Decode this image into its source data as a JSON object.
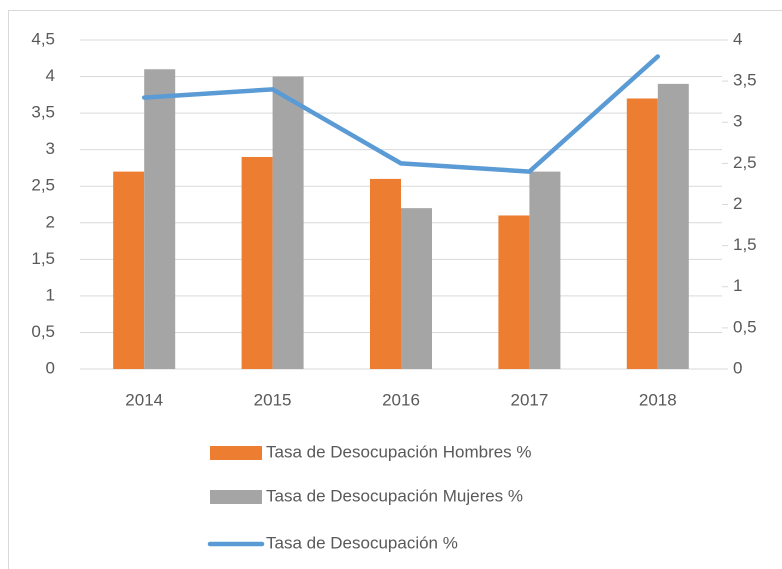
{
  "chart_data": {
    "type": "bar-line",
    "categories": [
      "2014",
      "2015",
      "2016",
      "2017",
      "2018"
    ],
    "series": [
      {
        "name": "Tasa de Desocupación Hombres %",
        "color": "#ed7d31",
        "type": "bar",
        "values": [
          2.7,
          2.9,
          2.6,
          2.1,
          3.7
        ]
      },
      {
        "name": "Tasa de Desocupación Mujeres %",
        "color": "#a5a5a5",
        "type": "bar",
        "values": [
          4.1,
          4.0,
          2.2,
          2.7,
          3.9
        ]
      },
      {
        "name": "Tasa de Desocupación %",
        "color": "#5b9bd5",
        "type": "line",
        "axis": "y2",
        "values": [
          3.3,
          3.4,
          2.5,
          2.4,
          3.8
        ]
      }
    ],
    "ylim": [
      0,
      4.5
    ],
    "yticks": [
      0,
      {
        "value": 0.5,
        "label": "0,5"
      },
      1,
      {
        "value": 1.5,
        "label": "1,5"
      },
      2,
      {
        "value": 2.5,
        "label": "2,5"
      },
      3,
      {
        "value": 3.5,
        "label": "3,5"
      },
      4,
      {
        "value": 4.5,
        "label": "4,5"
      }
    ],
    "y2lim": [
      0,
      4
    ],
    "y2ticks": [
      0,
      {
        "value": 0.5,
        "label": "0,5"
      },
      1,
      {
        "value": 1.5,
        "label": "1,5"
      },
      2,
      {
        "value": 2.5,
        "label": "2,5"
      },
      3,
      {
        "value": 3.5,
        "label": "3,5"
      },
      4
    ],
    "grid": true,
    "legend": "bottom"
  }
}
